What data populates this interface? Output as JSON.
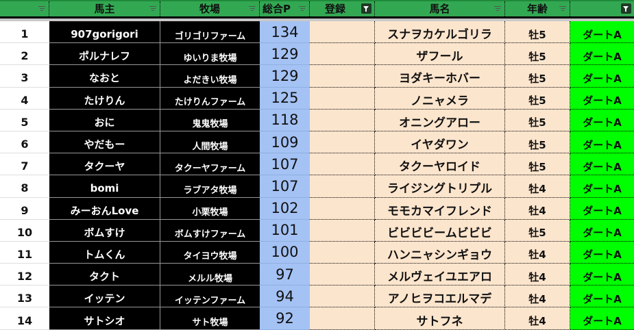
{
  "header": {
    "owner": "馬主",
    "farm": "牧場",
    "points": "総合P",
    "registered": "登録",
    "horse": "馬名",
    "age": "年齢",
    "class": ""
  },
  "colors": {
    "header": "#33a853",
    "owner_bg": "#000000",
    "points_bg": "#a4c2f4",
    "peach": "#fce5cd",
    "class_bg": "#00ff00"
  },
  "rows": [
    {
      "n": "1",
      "owner": "907gorigori",
      "farm": "ゴリゴリファーム",
      "points": "134",
      "horse": "スナヲカケルゴリラ",
      "age": "牡5",
      "class": "ダートA"
    },
    {
      "n": "2",
      "owner": "ポルナレフ",
      "farm": "ゆいりま牧場",
      "points": "129",
      "horse": "ザフール",
      "age": "牡5",
      "class": "ダートA"
    },
    {
      "n": "3",
      "owner": "なおと",
      "farm": "よだきい牧場",
      "points": "129",
      "horse": "ヨダキーホバー",
      "age": "牡5",
      "class": "ダートA"
    },
    {
      "n": "4",
      "owner": "たけりん",
      "farm": "たけりんファーム",
      "points": "125",
      "horse": "ノニャメラ",
      "age": "牡5",
      "class": "ダートA"
    },
    {
      "n": "5",
      "owner": "おに",
      "farm": "鬼鬼牧場",
      "points": "118",
      "horse": "オニングアロー",
      "age": "牡5",
      "class": "ダートA"
    },
    {
      "n": "6",
      "owner": "やだもー",
      "farm": "人間牧場",
      "points": "109",
      "horse": "イヤダワン",
      "age": "牡5",
      "class": "ダートA"
    },
    {
      "n": "7",
      "owner": "タクーヤ",
      "farm": "タクーヤファーム",
      "points": "107",
      "horse": "タクーヤロイド",
      "age": "牡5",
      "class": "ダートA"
    },
    {
      "n": "8",
      "owner": "bomi",
      "farm": "ラブアタ牧場",
      "points": "107",
      "horse": "ライジングトリプル",
      "age": "牡4",
      "class": "ダートA"
    },
    {
      "n": "9",
      "owner": "みーおんLove",
      "farm": "小栗牧場",
      "points": "102",
      "horse": "モモカマイフレンド",
      "age": "牡4",
      "class": "ダートA"
    },
    {
      "n": "10",
      "owner": "ボムすけ",
      "farm": "ボムすけファーム",
      "points": "101",
      "horse": "ビビビビームビビビ",
      "age": "牡5",
      "class": "ダートA"
    },
    {
      "n": "11",
      "owner": "トムくん",
      "farm": "タイヨウ牧場",
      "points": "100",
      "horse": "ハンニャシンギョウ",
      "age": "牡4",
      "class": "ダートA"
    },
    {
      "n": "12",
      "owner": "タクト",
      "farm": "メルル牧場",
      "points": "97",
      "horse": "メルヴェイユエアロ",
      "age": "牡4",
      "class": "ダートA"
    },
    {
      "n": "13",
      "owner": "イッテン",
      "farm": "イッテンファーム",
      "points": "94",
      "horse": "アノヒヲコエルマデ",
      "age": "牡4",
      "class": "ダートA"
    },
    {
      "n": "14",
      "owner": "サトシオ",
      "farm": "サト牧場",
      "points": "92",
      "horse": "サトフネ",
      "age": "牡4",
      "class": "ダートA"
    }
  ]
}
